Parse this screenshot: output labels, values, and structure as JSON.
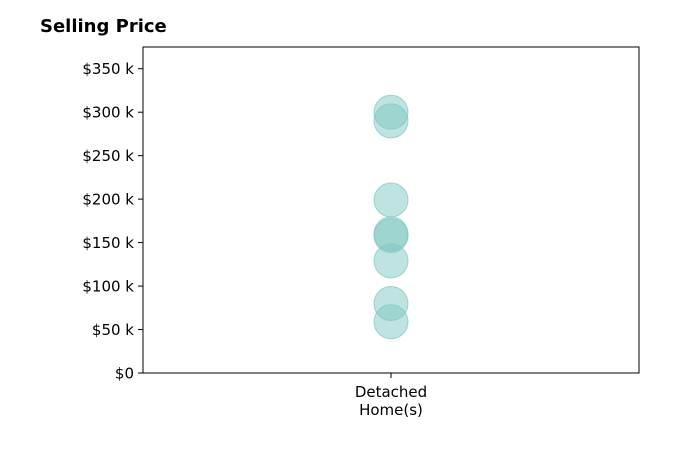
{
  "chart_data": {
    "type": "scatter",
    "title": "Selling Price",
    "xlabel": "",
    "ylabel": "",
    "categories": [
      [
        "Detached",
        "Home(s)"
      ]
    ],
    "y_ticks": [
      "$0",
      "$50 k",
      "$100 k",
      "$150 k",
      "$200 k",
      "$250 k",
      "$300 k",
      "$350 k"
    ],
    "y_tick_values": [
      0,
      50000,
      100000,
      150000,
      200000,
      250000,
      300000,
      350000
    ],
    "ylim": [
      0,
      375000
    ],
    "grid": false,
    "legend": "none",
    "series": [
      {
        "category_index": 0,
        "values": [
          300000,
          290000,
          199000,
          160000,
          158000,
          129000,
          80000,
          59000
        ]
      }
    ],
    "marker_color": "#7ec8c2",
    "marker_opacity": 0.5
  }
}
